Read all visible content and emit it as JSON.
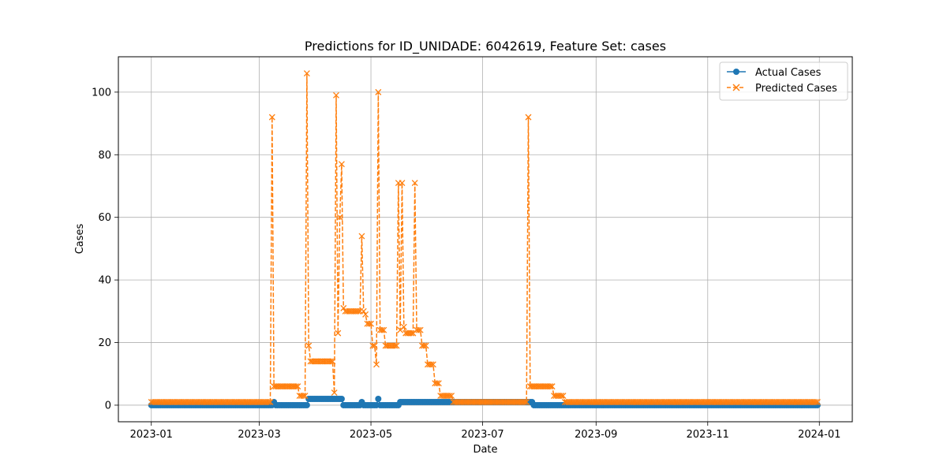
{
  "chart_data": {
    "type": "line",
    "title": "Predictions for ID_UNIDADE: 6042619, Feature Set: cases",
    "xlabel": "Date",
    "ylabel": "Cases",
    "x_start": "2023-01-01",
    "x_end": "2023-12-31",
    "xlim": [
      "2022-12-14",
      "2024-01-19"
    ],
    "ylim": [
      -5.3,
      111.3
    ],
    "x_ticks": [
      {
        "date": "2023-01-01",
        "label": "2023-01"
      },
      {
        "date": "2023-03-01",
        "label": "2023-03"
      },
      {
        "date": "2023-05-01",
        "label": "2023-05"
      },
      {
        "date": "2023-07-01",
        "label": "2023-07"
      },
      {
        "date": "2023-09-01",
        "label": "2023-09"
      },
      {
        "date": "2023-11-01",
        "label": "2023-11"
      },
      {
        "date": "2024-01-01",
        "label": "2024-01"
      }
    ],
    "y_ticks": [
      {
        "value": 0,
        "label": "0"
      },
      {
        "value": 20,
        "label": "20"
      },
      {
        "value": 40,
        "label": "40"
      },
      {
        "value": 60,
        "label": "60"
      },
      {
        "value": 80,
        "label": "80"
      },
      {
        "value": 100,
        "label": "100"
      }
    ],
    "grid": true,
    "legend_position": "top-right",
    "series": [
      {
        "name": "Actual Cases",
        "color": "#1f77b4",
        "marker": "circle",
        "line_style": "solid",
        "baseline": 0,
        "points": [
          [
            "2023-03-09",
            1
          ],
          [
            "2023-03-28",
            2
          ],
          [
            "2023-04-12",
            2
          ],
          [
            "2023-04-15",
            2
          ],
          [
            "2023-04-26",
            1
          ],
          [
            "2023-05-05",
            2
          ],
          [
            "2023-05-17",
            1
          ],
          [
            "2023-05-20",
            1
          ],
          [
            "2023-05-27",
            1
          ],
          [
            "2023-07-28",
            1
          ]
        ]
      },
      {
        "name": "Predicted Cases",
        "color": "#ff7f0e",
        "marker": "x",
        "line_style": "dashed",
        "baseline": 1,
        "points": [
          [
            "2023-03-07",
            1
          ],
          [
            "2023-03-08",
            92
          ],
          [
            "2023-03-09",
            6
          ],
          [
            "2023-03-22",
            6
          ],
          [
            "2023-03-23",
            3
          ],
          [
            "2023-03-26",
            3
          ],
          [
            "2023-03-27",
            106
          ],
          [
            "2023-03-28",
            19
          ],
          [
            "2023-03-29",
            14
          ],
          [
            "2023-04-10",
            14
          ],
          [
            "2023-04-11",
            4
          ],
          [
            "2023-04-12",
            99
          ],
          [
            "2023-04-13",
            23
          ],
          [
            "2023-04-14",
            60
          ],
          [
            "2023-04-15",
            77
          ],
          [
            "2023-04-16",
            31
          ],
          [
            "2023-04-17",
            30
          ],
          [
            "2023-04-25",
            30
          ],
          [
            "2023-04-26",
            54
          ],
          [
            "2023-04-27",
            30
          ],
          [
            "2023-04-28",
            29
          ],
          [
            "2023-04-29",
            26
          ],
          [
            "2023-05-01",
            26
          ],
          [
            "2023-05-02",
            19
          ],
          [
            "2023-05-03",
            19
          ],
          [
            "2023-05-04",
            13
          ],
          [
            "2023-05-05",
            100
          ],
          [
            "2023-05-06",
            24
          ],
          [
            "2023-05-08",
            24
          ],
          [
            "2023-05-09",
            19
          ],
          [
            "2023-05-15",
            19
          ],
          [
            "2023-05-16",
            71
          ],
          [
            "2023-05-17",
            24
          ],
          [
            "2023-05-18",
            71
          ],
          [
            "2023-05-19",
            25
          ],
          [
            "2023-05-20",
            23
          ],
          [
            "2023-05-24",
            23
          ],
          [
            "2023-05-25",
            71
          ],
          [
            "2023-05-26",
            24
          ],
          [
            "2023-05-28",
            24
          ],
          [
            "2023-05-29",
            19
          ],
          [
            "2023-05-31",
            19
          ],
          [
            "2023-06-01",
            13
          ],
          [
            "2023-06-04",
            13
          ],
          [
            "2023-06-05",
            7
          ],
          [
            "2023-06-07",
            7
          ],
          [
            "2023-06-08",
            3
          ],
          [
            "2023-06-14",
            3
          ],
          [
            "2023-06-15",
            1
          ],
          [
            "2023-07-25",
            1
          ],
          [
            "2023-07-26",
            92
          ],
          [
            "2023-07-27",
            6
          ],
          [
            "2023-08-08",
            6
          ],
          [
            "2023-08-09",
            3
          ],
          [
            "2023-08-14",
            3
          ],
          [
            "2023-08-15",
            1
          ]
        ]
      }
    ]
  }
}
